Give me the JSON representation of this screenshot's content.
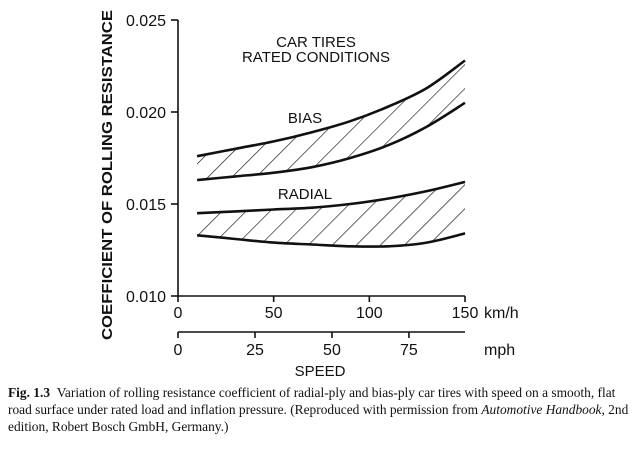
{
  "chart_data": {
    "type": "area",
    "y_axis": {
      "label": "COEFFICIENT OF ROLLING RESISTANCE",
      "range": [
        0.01,
        0.025
      ],
      "ticks": [
        "0.010",
        "0.015",
        "0.020",
        "0.025"
      ],
      "tick_values": [
        0.01,
        0.015,
        0.02,
        0.025
      ]
    },
    "x_axis_kmh": {
      "unit": "km/h",
      "range": [
        0,
        150
      ],
      "ticks": [
        "0",
        "50",
        "100",
        "150"
      ],
      "tick_values": [
        0,
        50,
        100,
        150
      ]
    },
    "x_axis_mph": {
      "unit": "mph",
      "ticks": [
        "0",
        "25",
        "50",
        "75"
      ],
      "tick_values": [
        0,
        25,
        50,
        75
      ],
      "label": "SPEED"
    },
    "title_lines": [
      "CAR TIRES",
      "RATED CONDITIONS"
    ],
    "series": [
      {
        "name": "BIAS",
        "x": [
          10,
          30,
          50,
          70,
          90,
          110,
          130,
          150
        ],
        "upper": [
          0.0176,
          0.018,
          0.0184,
          0.0189,
          0.0195,
          0.0203,
          0.0213,
          0.0228
        ],
        "lower": [
          0.0163,
          0.0165,
          0.0167,
          0.017,
          0.0175,
          0.0182,
          0.0192,
          0.0205
        ]
      },
      {
        "name": "RADIAL",
        "x": [
          10,
          30,
          50,
          70,
          90,
          110,
          130,
          150
        ],
        "upper": [
          0.0145,
          0.0146,
          0.0147,
          0.0148,
          0.015,
          0.0153,
          0.0157,
          0.0162
        ],
        "lower": [
          0.0133,
          0.0131,
          0.0129,
          0.0128,
          0.0127,
          0.0127,
          0.0129,
          0.0134
        ]
      }
    ]
  },
  "caption": {
    "label": "Fig. 1.3",
    "text1": "Variation of rolling resistance coefficient of radial-ply and bias-ply car tires with speed on a smooth, flat road surface under rated load and inflation pressure. (Reproduced with permission from ",
    "book": "Automotive Handbook,",
    "text2": " 2nd edition, Robert Bosch GmbH, Germany.)"
  }
}
